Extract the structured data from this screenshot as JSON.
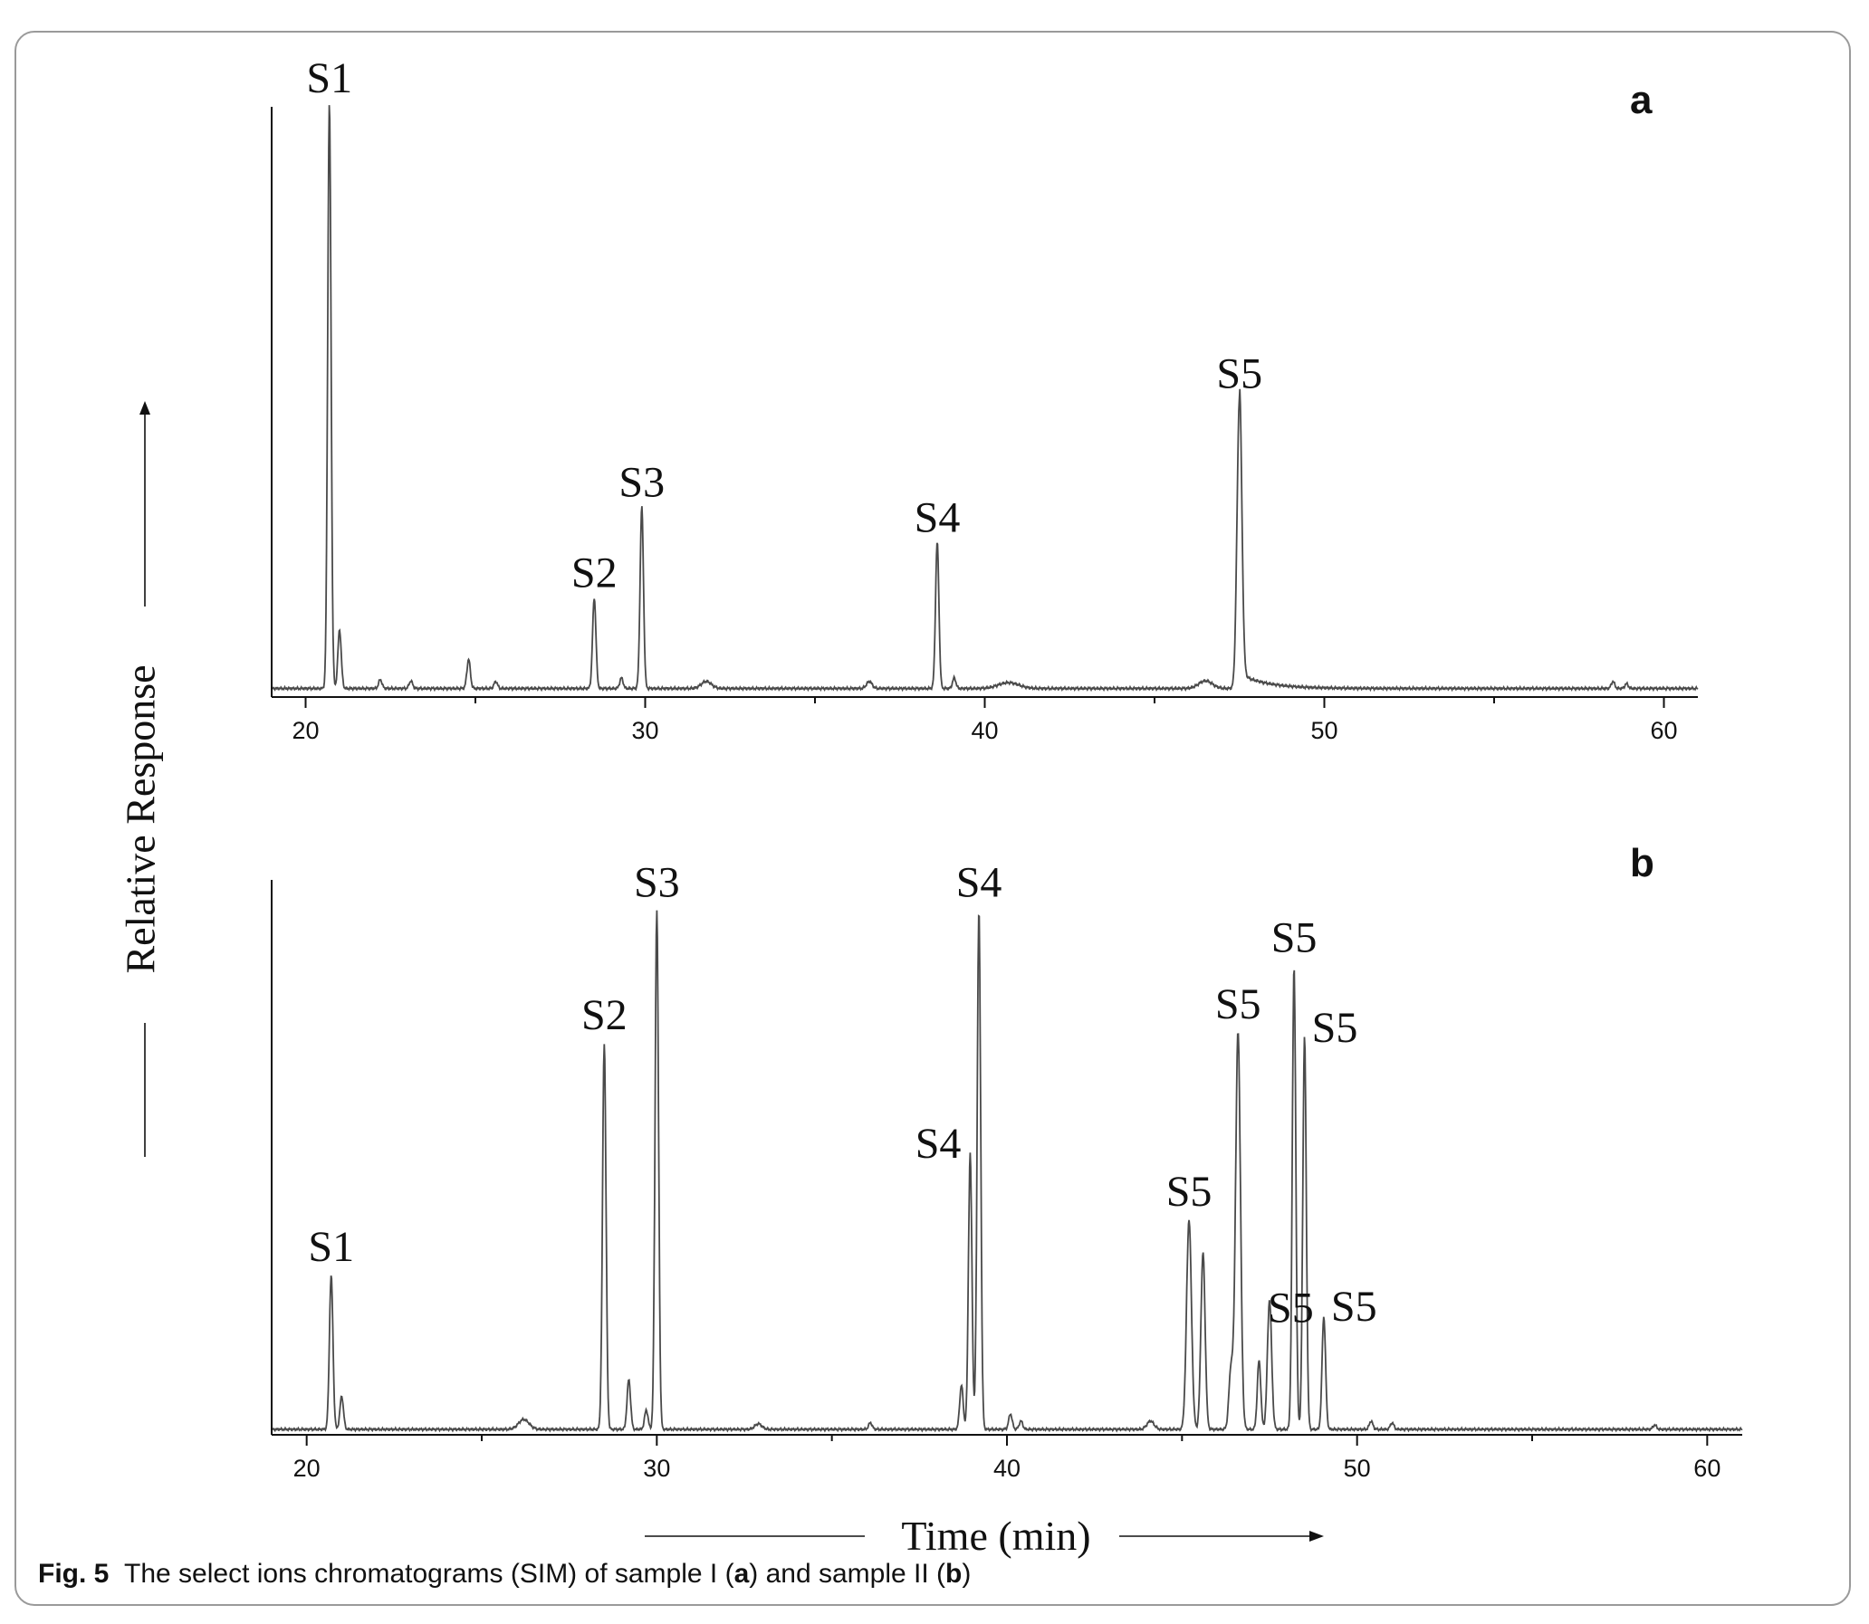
{
  "caption": {
    "fig_label": "Fig. 5",
    "text_1": "The select ions chromatograms (SIM) of sample I (",
    "bold_a": "a",
    "text_2": ") and sample II (",
    "bold_b": "b",
    "text_3": ")"
  },
  "chart_data": [
    {
      "type": "line",
      "panel_label": "a",
      "xlabel": "Time (min)",
      "ylabel": "Relative Response",
      "xlim": [
        19,
        61
      ],
      "ylim": [
        0,
        100
      ],
      "x_ticks": [
        20,
        30,
        40,
        50,
        60
      ],
      "grid": false,
      "baseline": 1.0,
      "peaks": [
        {
          "x": 20.7,
          "y": 100,
          "w": 0.05,
          "label": "S1"
        },
        {
          "x": 21.0,
          "y": 10,
          "w": 0.05
        },
        {
          "x": 22.2,
          "y": 1.5,
          "w": 0.05
        },
        {
          "x": 23.1,
          "y": 1.3,
          "w": 0.05
        },
        {
          "x": 24.8,
          "y": 5,
          "w": 0.05
        },
        {
          "x": 25.6,
          "y": 1.2,
          "w": 0.05
        },
        {
          "x": 28.5,
          "y": 15.5,
          "w": 0.05,
          "label": "S2"
        },
        {
          "x": 29.3,
          "y": 1.8,
          "w": 0.05
        },
        {
          "x": 29.9,
          "y": 31,
          "w": 0.05,
          "label": "S3"
        },
        {
          "x": 31.8,
          "y": 1.2,
          "w": 0.15
        },
        {
          "x": 36.6,
          "y": 1.2,
          "w": 0.08
        },
        {
          "x": 38.6,
          "y": 25,
          "w": 0.05,
          "label": "S4"
        },
        {
          "x": 39.1,
          "y": 1.8,
          "w": 0.05
        },
        {
          "x": 40.7,
          "y": 1.0,
          "w": 0.3
        },
        {
          "x": 46.5,
          "y": 1.3,
          "w": 0.2
        },
        {
          "x": 47.5,
          "y": 49.5,
          "w": 0.07,
          "tail": 0.8,
          "label": "S5"
        },
        {
          "x": 58.5,
          "y": 1.2,
          "w": 0.05
        },
        {
          "x": 58.9,
          "y": 0.8,
          "w": 0.05
        }
      ]
    },
    {
      "type": "line",
      "panel_label": "b",
      "xlabel": "Time (min)",
      "ylabel": "Relative Response",
      "xlim": [
        19,
        61
      ],
      "ylim": [
        0,
        100
      ],
      "x_ticks": [
        20,
        30,
        40,
        50,
        60
      ],
      "grid": false,
      "baseline": 0.5,
      "peaks": [
        {
          "x": 20.7,
          "y": 28,
          "w": 0.05,
          "label": "S1"
        },
        {
          "x": 21.0,
          "y": 6,
          "w": 0.05
        },
        {
          "x": 26.2,
          "y": 1.8,
          "w": 0.15
        },
        {
          "x": 28.5,
          "y": 70,
          "w": 0.05,
          "label": "S2"
        },
        {
          "x": 29.2,
          "y": 9,
          "w": 0.05
        },
        {
          "x": 29.7,
          "y": 3.5,
          "w": 0.05
        },
        {
          "x": 30.0,
          "y": 94,
          "w": 0.05,
          "label": "S3"
        },
        {
          "x": 32.9,
          "y": 1.0,
          "w": 0.1
        },
        {
          "x": 36.1,
          "y": 1.2,
          "w": 0.05
        },
        {
          "x": 38.7,
          "y": 8,
          "w": 0.05
        },
        {
          "x": 38.95,
          "y": 50,
          "w": 0.05,
          "label": "S4"
        },
        {
          "x": 39.2,
          "y": 94,
          "w": 0.05,
          "label": "S4"
        },
        {
          "x": 40.1,
          "y": 2.8,
          "w": 0.05
        },
        {
          "x": 40.4,
          "y": 1.5,
          "w": 0.05
        },
        {
          "x": 44.1,
          "y": 1.5,
          "w": 0.1
        },
        {
          "x": 45.2,
          "y": 38,
          "w": 0.07,
          "label": "S5"
        },
        {
          "x": 45.6,
          "y": 32,
          "w": 0.06
        },
        {
          "x": 46.4,
          "y": 11,
          "w": 0.06
        },
        {
          "x": 46.6,
          "y": 72,
          "w": 0.07,
          "label": "S5"
        },
        {
          "x": 47.2,
          "y": 12.5,
          "w": 0.05
        },
        {
          "x": 47.5,
          "y": 23.5,
          "w": 0.06,
          "label": "S5"
        },
        {
          "x": 48.2,
          "y": 84,
          "w": 0.05,
          "label": "S5"
        },
        {
          "x": 48.5,
          "y": 71,
          "w": 0.05,
          "label": "S5"
        },
        {
          "x": 49.05,
          "y": 20.5,
          "w": 0.05,
          "label": "S5"
        },
        {
          "x": 50.4,
          "y": 1.5,
          "w": 0.05
        },
        {
          "x": 51.0,
          "y": 1.2,
          "w": 0.05
        },
        {
          "x": 58.5,
          "y": 0.8,
          "w": 0.05
        }
      ]
    }
  ]
}
